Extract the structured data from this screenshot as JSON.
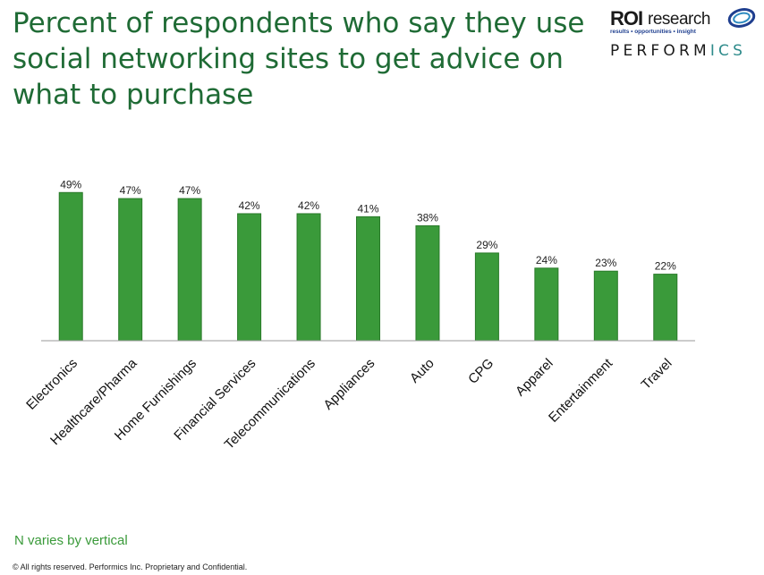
{
  "slide": {
    "title": "Percent of respondents who say they use social networking sites to get advice on what to purchase",
    "note": "N varies by vertical",
    "footer": "© All rights reserved. Performics Inc. Proprietary and Confidential."
  },
  "logo": {
    "roi": "ROI",
    "research": "research",
    "tagline": "results • opportunities • insight",
    "performics_main": "PERFORM",
    "performics_accent": "ICS"
  },
  "colors": {
    "bar": "#3a9a3a",
    "bar_edge": "#2a7a2a",
    "title": "#1f6b35",
    "note": "#3a9a3a"
  },
  "chart_data": {
    "type": "bar",
    "title": "",
    "xlabel": "",
    "ylabel": "",
    "ylim": [
      0,
      55
    ],
    "grid": false,
    "value_suffix": "%",
    "categories": [
      "Electronics",
      "Healthcare/Pharma",
      "Home Furnishings",
      "Financial Services",
      "Telecommunications",
      "Appliances",
      "Auto",
      "CPG",
      "Apparel",
      "Entertainment",
      "Travel"
    ],
    "values": [
      49,
      47,
      47,
      42,
      42,
      41,
      38,
      29,
      24,
      23,
      22
    ],
    "data_labels": [
      "49%",
      "47%",
      "47%",
      "42%",
      "42%",
      "41%",
      "38%",
      "29%",
      "24%",
      "23%",
      "22%"
    ]
  }
}
